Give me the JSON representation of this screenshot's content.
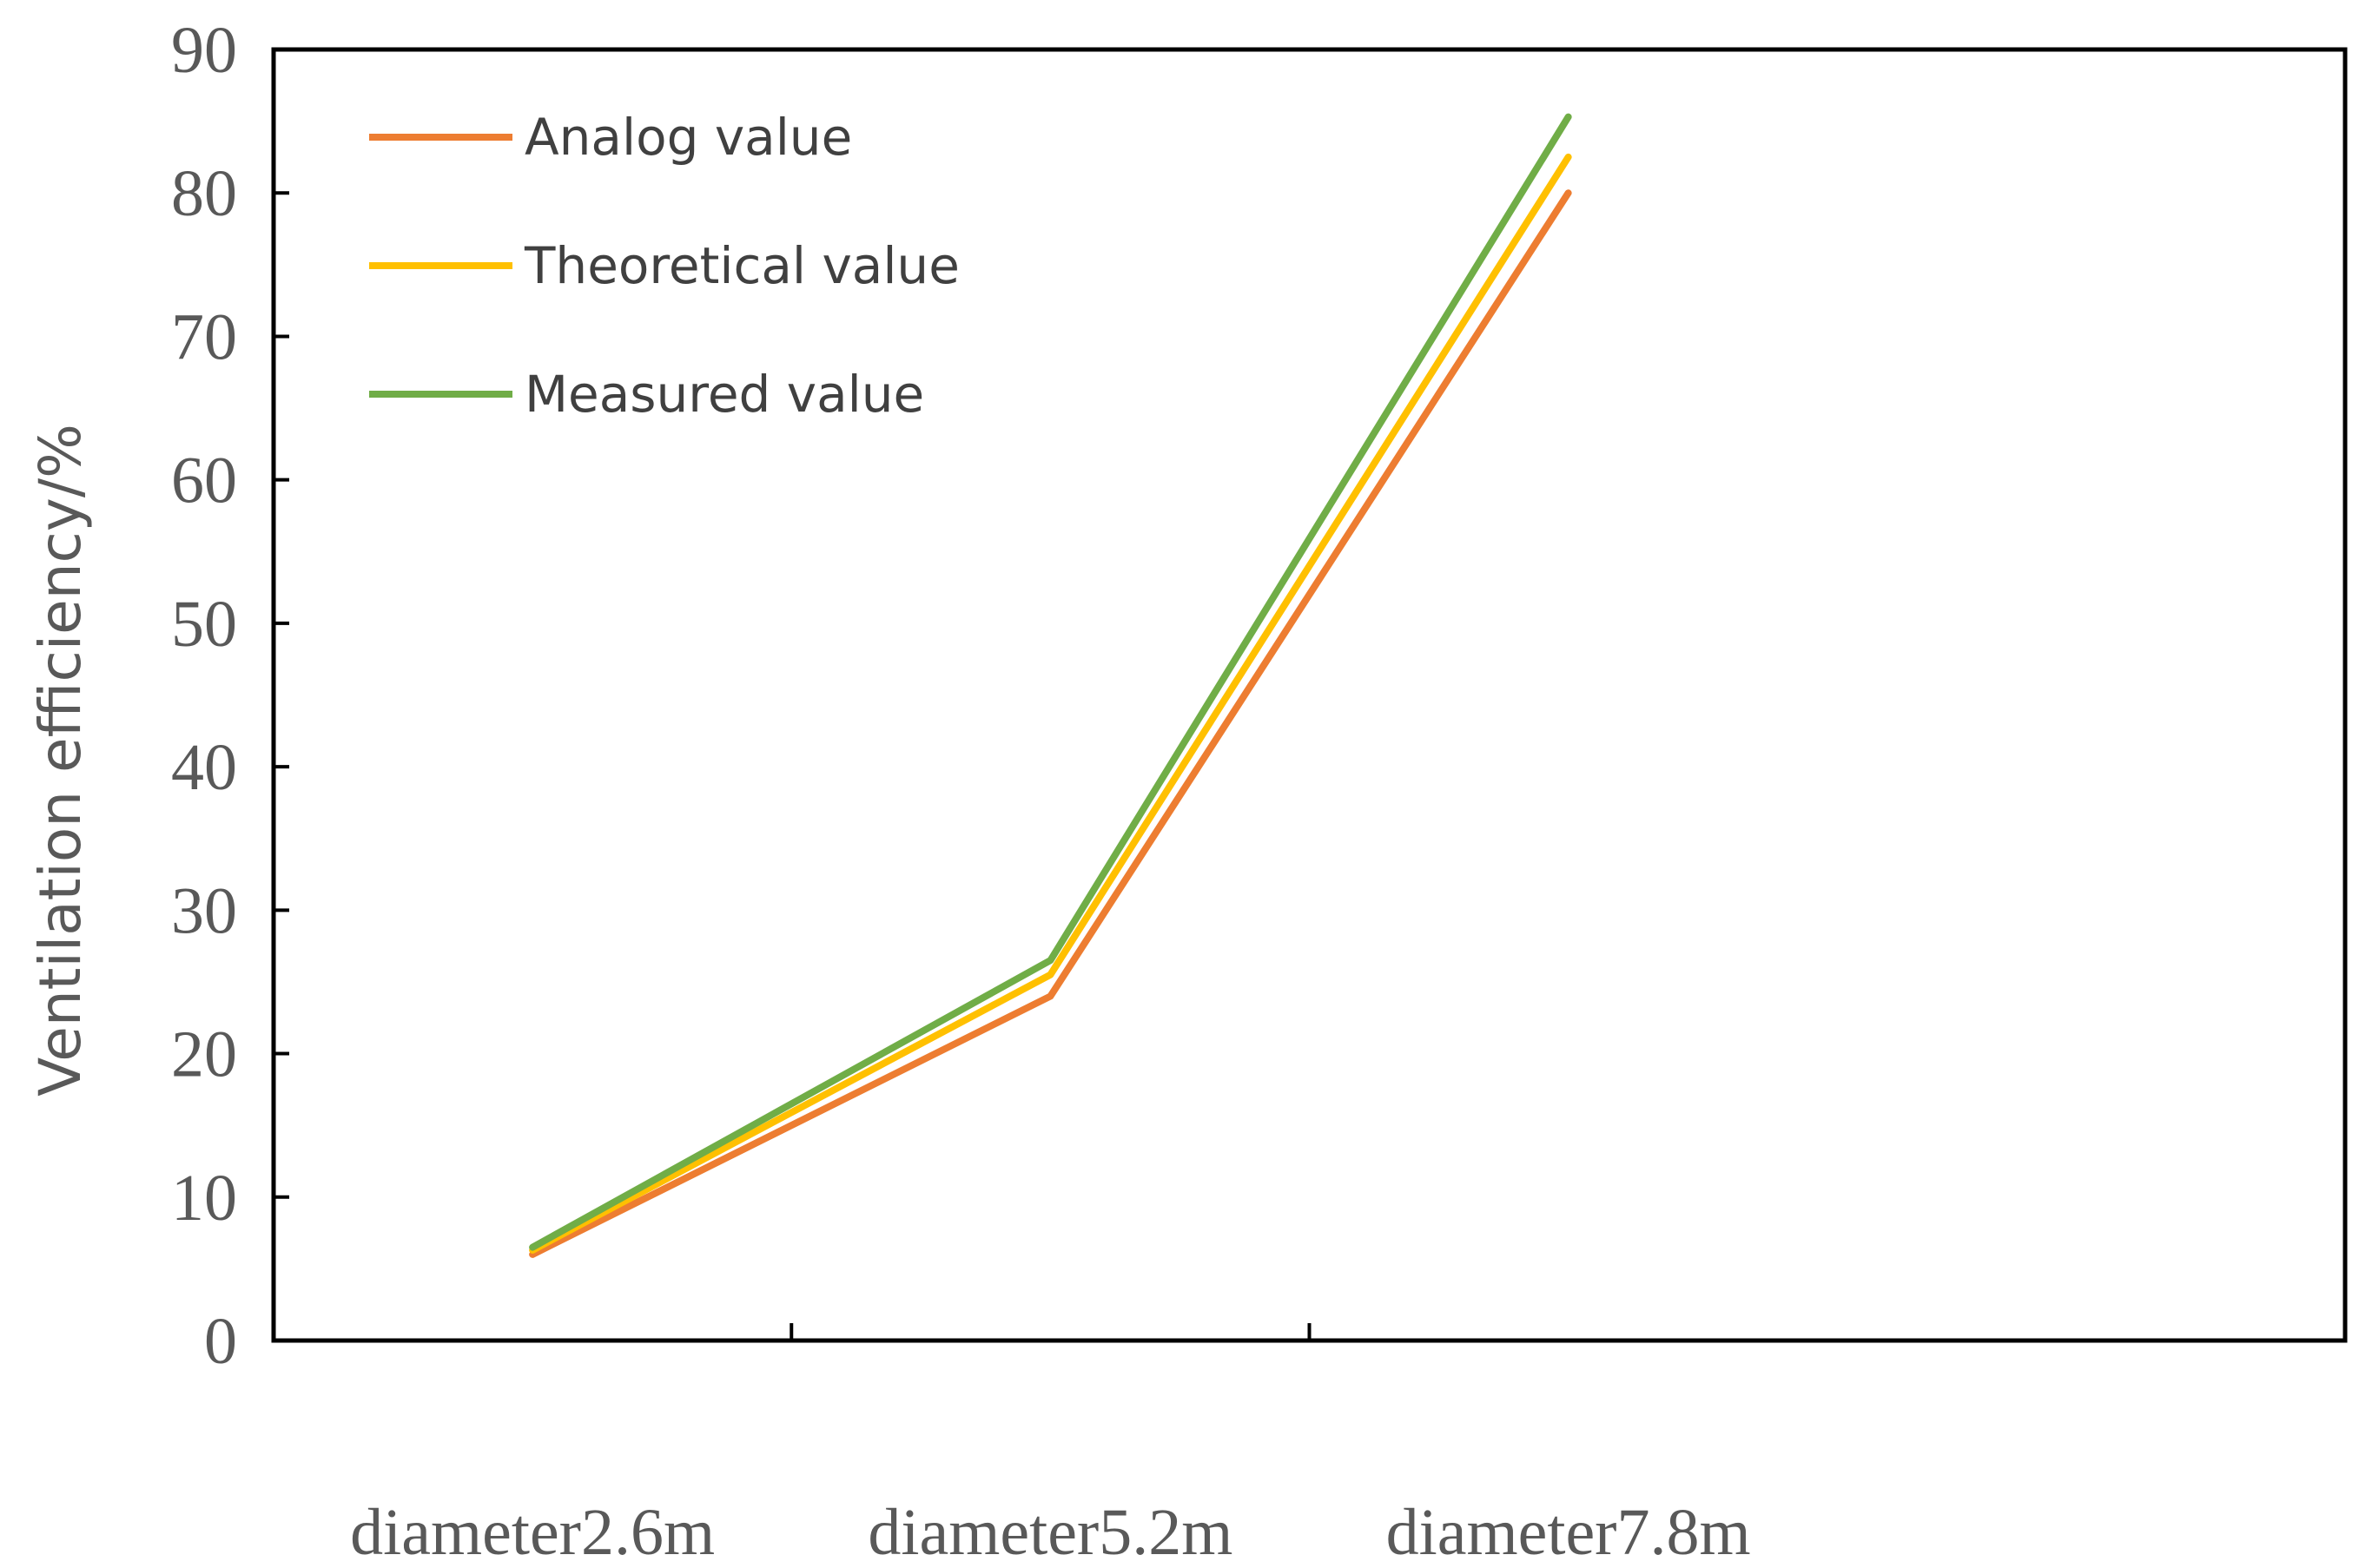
{
  "chart_data": {
    "type": "line",
    "title": "",
    "xlabel": "",
    "ylabel": "Ventilation efficiency/%",
    "categories": [
      "diameter2.6m",
      "diameter5.2m",
      "diameter7.8m"
    ],
    "ylim": [
      0,
      90
    ],
    "yticks": [
      0,
      10,
      20,
      30,
      40,
      50,
      60,
      70,
      80,
      90
    ],
    "grid": false,
    "legend_position": "top-left",
    "series": [
      {
        "name": "Analog value",
        "color": "#ED7D31",
        "values": [
          6,
          24,
          80
        ]
      },
      {
        "name": "Theoretical value",
        "color": "#FFC000",
        "values": [
          6.3,
          25.5,
          82.5
        ]
      },
      {
        "name": "Measured value",
        "color": "#70AD47",
        "values": [
          6.5,
          26.5,
          85.3
        ]
      }
    ]
  }
}
